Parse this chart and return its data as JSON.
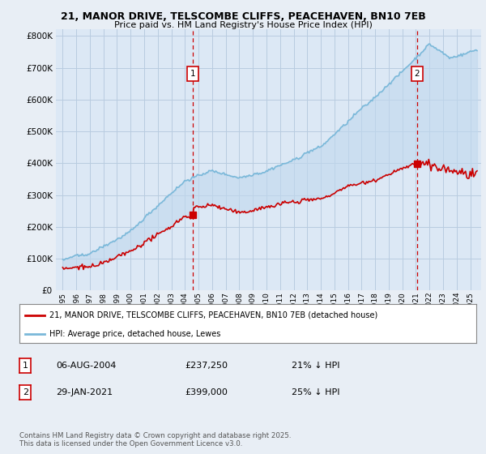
{
  "title_line1": "21, MANOR DRIVE, TELSCOMBE CLIFFS, PEACEHAVEN, BN10 7EB",
  "title_line2": "Price paid vs. HM Land Registry's House Price Index (HPI)",
  "ytick_values": [
    0,
    100000,
    200000,
    300000,
    400000,
    500000,
    600000,
    700000,
    800000
  ],
  "ylim": [
    0,
    820000
  ],
  "background_color": "#e8eef5",
  "plot_background": "#dce8f5",
  "grid_color": "#b0c4de",
  "hpi_color": "#7ab8d9",
  "price_color": "#cc0000",
  "dashed_line_color": "#cc0000",
  "fill_color": "#c8dff0",
  "legend_label_price": "21, MANOR DRIVE, TELSCOMBE CLIFFS, PEACEHAVEN, BN10 7EB (detached house)",
  "legend_label_hpi": "HPI: Average price, detached house, Lewes",
  "annotation1_date": "06-AUG-2004",
  "annotation1_price": "£237,250",
  "annotation1_hpi": "21% ↓ HPI",
  "annotation2_date": "29-JAN-2021",
  "annotation2_price": "£399,000",
  "annotation2_hpi": "25% ↓ HPI",
  "footer_line1": "Contains HM Land Registry data © Crown copyright and database right 2025.",
  "footer_line2": "This data is licensed under the Open Government Licence v3.0.",
  "t1_year": 2004.6,
  "t2_year": 2021.08,
  "t1_price": 237250,
  "t2_price": 399000
}
